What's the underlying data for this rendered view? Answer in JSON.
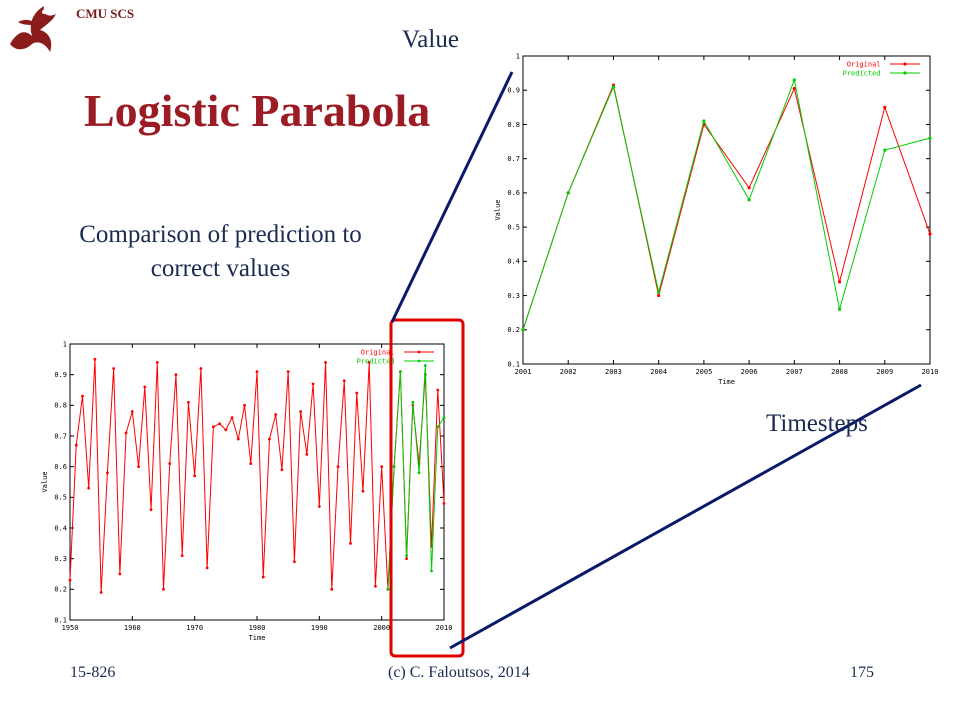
{
  "header": {
    "org": "CMU SCS",
    "title": "Logistic Parabola"
  },
  "subtitle": "Comparison of prediction to correct values",
  "callouts": {
    "value": "Value",
    "timesteps": "Timesteps"
  },
  "footer": {
    "course": "15-826",
    "author": "(c) C. Faloutsos, 2014",
    "page": "175"
  },
  "colors": {
    "original": "#ff0000",
    "predicted": "#00cc00",
    "title": "#9b1c24",
    "text": "#1b2a50",
    "highlight": "#e00000",
    "connector": "#0a1a6a"
  },
  "chart_data": [
    {
      "type": "line",
      "xlabel": "Time",
      "ylabel": "Value",
      "xlim": [
        1950,
        2010
      ],
      "ylim": [
        0.1,
        1.0
      ],
      "xticks": [
        "1950",
        "1960",
        "1970",
        "1980",
        "1990",
        "2000",
        "2010"
      ],
      "yticks": [
        "0.1",
        "0.2",
        "0.3",
        "0.4",
        "0.5",
        "0.6",
        "0.7",
        "0.8",
        "0.9",
        "1"
      ],
      "grid": false,
      "legend": "top-right",
      "series": [
        {
          "name": "Original",
          "color": "#ff0000",
          "x": [
            1950,
            1951,
            1952,
            1953,
            1954,
            1955,
            1956,
            1957,
            1958,
            1959,
            1960,
            1961,
            1962,
            1963,
            1964,
            1965,
            1966,
            1967,
            1968,
            1969,
            1970,
            1971,
            1972,
            1973,
            1974,
            1975,
            1976,
            1977,
            1978,
            1979,
            1980,
            1981,
            1982,
            1983,
            1984,
            1985,
            1986,
            1987,
            1988,
            1989,
            1990,
            1991,
            1992,
            1993,
            1994,
            1995,
            1996,
            1997,
            1998,
            1999,
            2000,
            2001,
            2002,
            2003,
            2004,
            2005,
            2006,
            2007,
            2008,
            2009,
            2010
          ],
          "values": [
            0.23,
            0.67,
            0.83,
            0.53,
            0.95,
            0.19,
            0.58,
            0.92,
            0.25,
            0.71,
            0.78,
            0.6,
            0.86,
            0.46,
            0.94,
            0.2,
            0.61,
            0.9,
            0.31,
            0.81,
            0.57,
            0.92,
            0.27,
            0.73,
            0.74,
            0.72,
            0.76,
            0.69,
            0.8,
            0.61,
            0.91,
            0.24,
            0.69,
            0.77,
            0.59,
            0.91,
            0.29,
            0.78,
            0.64,
            0.87,
            0.47,
            0.94,
            0.2,
            0.6,
            0.88,
            0.35,
            0.84,
            0.52,
            0.94,
            0.21,
            0.6,
            0.2,
            0.6,
            0.91,
            0.3,
            0.8,
            0.61,
            0.9,
            0.34,
            0.85,
            0.48
          ]
        },
        {
          "name": "Predicted",
          "color": "#00cc00",
          "x": [
            2001,
            2002,
            2003,
            2004,
            2005,
            2006,
            2007,
            2008,
            2009,
            2010
          ],
          "values": [
            0.2,
            0.6,
            0.91,
            0.31,
            0.81,
            0.58,
            0.93,
            0.26,
            0.73,
            0.76
          ]
        }
      ]
    },
    {
      "type": "line",
      "xlabel": "Time",
      "ylabel": "Value",
      "xlim": [
        2001,
        2010
      ],
      "ylim": [
        0.1,
        1.0
      ],
      "xticks": [
        "2001",
        "2002",
        "2003",
        "2004",
        "2005",
        "2006",
        "2007",
        "2008",
        "2009",
        "2010"
      ],
      "yticks": [
        "0.1",
        "0.2",
        "0.3",
        "0.4",
        "0.5",
        "0.6",
        "0.7",
        "0.8",
        "0.9",
        "1"
      ],
      "grid": false,
      "legend": "top-right",
      "series": [
        {
          "name": "Original",
          "color": "#ff0000",
          "x": [
            2001,
            2002,
            2003,
            2004,
            2005,
            2006,
            2007,
            2008,
            2009,
            2010
          ],
          "values": [
            0.2,
            0.6,
            0.915,
            0.3,
            0.8,
            0.615,
            0.905,
            0.34,
            0.85,
            0.48
          ]
        },
        {
          "name": "Predicted",
          "color": "#00cc00",
          "x": [
            2001,
            2002,
            2003,
            2004,
            2005,
            2006,
            2007,
            2008,
            2009,
            2010
          ],
          "values": [
            0.2,
            0.6,
            0.91,
            0.31,
            0.81,
            0.58,
            0.93,
            0.26,
            0.725,
            0.76
          ]
        }
      ]
    }
  ]
}
